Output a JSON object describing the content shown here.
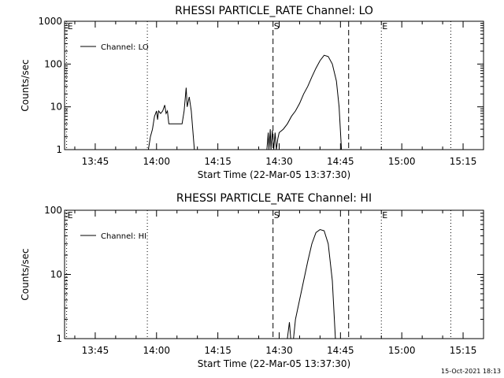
{
  "chart_data": [
    {
      "type": "line",
      "title": "RHESSI PARTICLE_RATE Channel: LO",
      "xlabel": "Start Time (22-Mar-05 13:37:30)",
      "ylabel": "Counts/sec",
      "yscale": "log",
      "ylim": [
        1,
        1000
      ],
      "xlim": [
        "13:37:30",
        "15:20:00"
      ],
      "xticks": [
        "13:45",
        "14:00",
        "14:15",
        "14:30",
        "14:45",
        "15:00",
        "15:15"
      ],
      "yticks": [
        "1",
        "10",
        "100",
        "1000"
      ],
      "legend": {
        "position": "top-left",
        "entries": [
          "Channel: LO"
        ]
      },
      "markers": [
        {
          "label": "E",
          "time": "13:38:00",
          "style": "dotted"
        },
        {
          "label": "",
          "time": "13:57:45",
          "style": "dotted"
        },
        {
          "label": "S",
          "time": "14:28:30",
          "style": "dashed"
        },
        {
          "label": "",
          "time": "14:47:00",
          "style": "dashed"
        },
        {
          "label": "E",
          "time": "14:55:00",
          "style": "dotted"
        },
        {
          "label": "",
          "time": "15:12:00",
          "style": "dotted"
        }
      ],
      "series": [
        {
          "name": "Channel: LO",
          "segments": [
            [
              [
                "13:58:00",
                1
              ],
              [
                "13:58:30",
                2
              ],
              [
                "13:59:00",
                3
              ],
              [
                "13:59:30",
                6
              ],
              [
                "14:00:00",
                8
              ],
              [
                "14:00:15",
                5
              ],
              [
                "14:00:30",
                8
              ],
              [
                "14:01:00",
                7
              ],
              [
                "14:01:30",
                8
              ],
              [
                "14:02:00",
                11
              ],
              [
                "14:02:20",
                7
              ],
              [
                "14:02:40",
                8
              ],
              [
                "14:03:00",
                4
              ],
              [
                "14:03:30",
                4
              ],
              [
                "14:05:00",
                4
              ],
              [
                "14:06:15",
                4
              ],
              [
                "14:06:45",
                8
              ],
              [
                "14:07:15",
                28
              ],
              [
                "14:07:30",
                10
              ],
              [
                "14:08:00",
                17
              ],
              [
                "14:08:30",
                8
              ],
              [
                "14:09:15",
                1
              ]
            ],
            [
              [
                "14:27:00",
                1
              ],
              [
                "14:27:20",
                2.5
              ],
              [
                "14:27:30",
                1
              ],
              [
                "14:27:50",
                3
              ],
              [
                "14:28:00",
                1
              ],
              [
                "14:28:20",
                2.8
              ],
              [
                "14:28:40",
                1
              ],
              [
                "14:29:00",
                2.5
              ],
              [
                "14:29:20",
                1
              ],
              [
                "14:29:40",
                1.8
              ],
              [
                "14:30:00",
                2.5
              ],
              [
                "14:31:00",
                3
              ],
              [
                "14:32:00",
                4
              ],
              [
                "14:33:00",
                6
              ],
              [
                "14:34:00",
                8
              ],
              [
                "14:35:00",
                12
              ],
              [
                "14:36:00",
                20
              ],
              [
                "14:37:00",
                30
              ],
              [
                "14:38:00",
                50
              ],
              [
                "14:39:00",
                80
              ],
              [
                "14:40:00",
                120
              ],
              [
                "14:41:00",
                160
              ],
              [
                "14:42:00",
                150
              ],
              [
                "14:43:00",
                100
              ],
              [
                "14:44:00",
                40
              ],
              [
                "14:44:40",
                10
              ],
              [
                "14:45:15",
                1
              ]
            ]
          ]
        }
      ]
    },
    {
      "type": "line",
      "title": "RHESSI PARTICLE_RATE Channel: HI",
      "xlabel": "Start Time (22-Mar-05 13:37:30)",
      "ylabel": "Counts/sec",
      "yscale": "log",
      "ylim": [
        1,
        100
      ],
      "xlim": [
        "13:37:30",
        "15:20:00"
      ],
      "xticks": [
        "13:45",
        "14:00",
        "14:15",
        "14:30",
        "14:45",
        "15:00",
        "15:15"
      ],
      "yticks": [
        "1",
        "10",
        "100"
      ],
      "legend": {
        "position": "top-left",
        "entries": [
          "Channel: HI"
        ]
      },
      "markers": [
        {
          "label": "E",
          "time": "13:38:00",
          "style": "dotted"
        },
        {
          "label": "",
          "time": "13:57:45",
          "style": "dotted"
        },
        {
          "label": "S",
          "time": "14:28:30",
          "style": "dashed"
        },
        {
          "label": "",
          "time": "14:47:00",
          "style": "dashed"
        },
        {
          "label": "E",
          "time": "14:55:00",
          "style": "dotted"
        },
        {
          "label": "",
          "time": "15:12:00",
          "style": "dotted"
        }
      ],
      "series": [
        {
          "name": "Channel: HI",
          "segments": [
            [
              [
                "14:32:00",
                1
              ],
              [
                "14:32:30",
                1.8
              ],
              [
                "14:32:50",
                1
              ]
            ],
            [
              [
                "14:33:30",
                1
              ],
              [
                "14:34:00",
                2
              ],
              [
                "14:35:00",
                4
              ],
              [
                "14:36:00",
                8
              ],
              [
                "14:37:00",
                16
              ],
              [
                "14:38:00",
                30
              ],
              [
                "14:39:00",
                45
              ],
              [
                "14:40:00",
                50
              ],
              [
                "14:41:00",
                48
              ],
              [
                "14:42:00",
                30
              ],
              [
                "14:43:00",
                8
              ],
              [
                "14:43:45",
                1
              ]
            ]
          ]
        }
      ]
    }
  ],
  "timestamp": "15-Oct-2021 18:13"
}
